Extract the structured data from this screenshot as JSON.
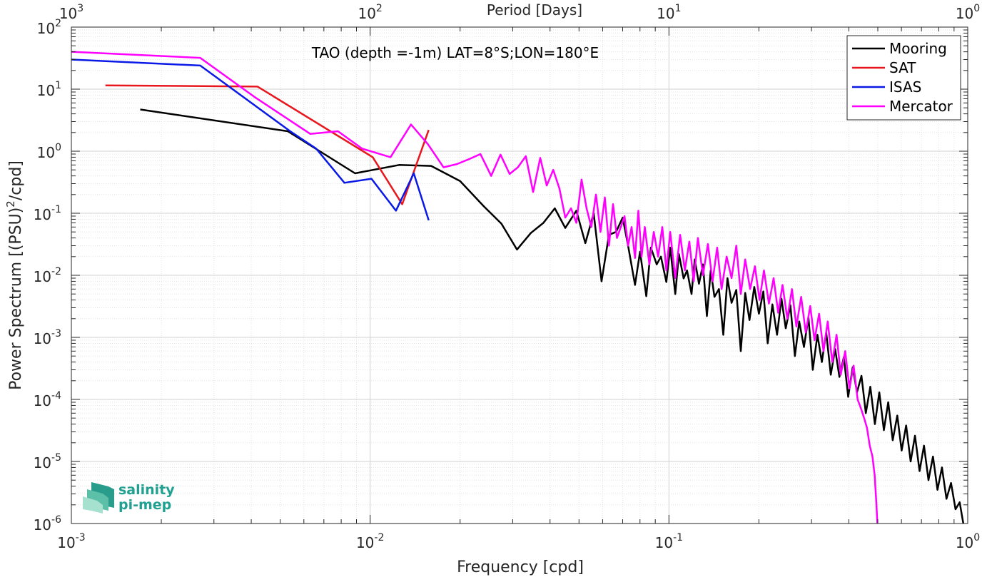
{
  "chart_data": {
    "type": "line",
    "title": "TAO (depth =-1m) LAT=8°S;LON=180°E",
    "xlabel": "Frequency [cpd]",
    "ylabel_main": "Power Spectrum [(PSU)",
    "ylabel_sup": "2",
    "ylabel_tail": "/cpd]",
    "top_xlabel": "Period [Days]",
    "xscale": "log",
    "yscale": "log",
    "xlim": [
      0.001,
      1
    ],
    "ylim": [
      1e-06,
      100
    ],
    "grid": true,
    "legend_position": "top-right",
    "x_ticks": [
      {
        "base": "10",
        "exp": "-3"
      },
      {
        "base": "10",
        "exp": "-2"
      },
      {
        "base": "10",
        "exp": "-1"
      },
      {
        "base": "10",
        "exp": "0"
      }
    ],
    "top_ticks": [
      {
        "base": "10",
        "exp": "3"
      },
      {
        "base": "10",
        "exp": "2"
      },
      {
        "base": "10",
        "exp": "1"
      },
      {
        "base": "10",
        "exp": "0"
      }
    ],
    "y_ticks": [
      {
        "base": "10",
        "exp": "2"
      },
      {
        "base": "10",
        "exp": "1"
      },
      {
        "base": "10",
        "exp": "0"
      },
      {
        "base": "10",
        "exp": "-1"
      },
      {
        "base": "10",
        "exp": "-2"
      },
      {
        "base": "10",
        "exp": "-3"
      },
      {
        "base": "10",
        "exp": "-4"
      },
      {
        "base": "10",
        "exp": "-5"
      },
      {
        "base": "10",
        "exp": "-6"
      }
    ],
    "series": [
      {
        "name": "Mooring",
        "color": "#000000",
        "x": [
          0.0017,
          0.0053,
          0.0089,
          0.0125,
          0.016,
          0.02,
          0.024,
          0.0275,
          0.031,
          0.0345,
          0.038,
          0.0415,
          0.045,
          0.049,
          0.0525,
          0.056,
          0.0595,
          0.063,
          0.0665,
          0.07,
          0.073,
          0.077,
          0.08,
          0.084,
          0.087,
          0.091,
          0.094,
          0.098,
          0.101,
          0.105,
          0.108,
          0.112,
          0.115,
          0.119,
          0.122,
          0.126,
          0.13,
          0.134,
          0.138,
          0.142,
          0.147,
          0.152,
          0.157,
          0.162,
          0.168,
          0.174,
          0.18,
          0.186,
          0.193,
          0.2,
          0.207,
          0.214,
          0.222,
          0.23,
          0.238,
          0.246,
          0.255,
          0.264,
          0.273,
          0.283,
          0.293,
          0.303,
          0.314,
          0.325,
          0.336,
          0.348,
          0.36,
          0.372,
          0.385,
          0.398,
          0.412,
          0.426,
          0.441,
          0.456,
          0.472,
          0.489,
          0.506,
          0.524,
          0.542,
          0.561,
          0.581,
          0.601,
          0.622,
          0.644,
          0.666,
          0.69,
          0.714,
          0.739,
          0.765,
          0.792,
          0.82,
          0.849,
          0.879,
          0.91,
          0.94,
          0.96,
          0.975,
          0.985,
          0.995
        ],
        "y": [
          4.7,
          2.1,
          0.44,
          0.6,
          0.58,
          0.33,
          0.13,
          0.068,
          0.026,
          0.048,
          0.07,
          0.12,
          0.058,
          0.11,
          0.033,
          0.1,
          0.008,
          0.045,
          0.05,
          0.085,
          0.03,
          0.007,
          0.024,
          0.0046,
          0.028,
          0.015,
          0.02,
          0.0078,
          0.028,
          0.005,
          0.022,
          0.0089,
          0.012,
          0.005,
          0.018,
          0.0073,
          0.015,
          0.0022,
          0.012,
          0.0045,
          0.006,
          0.0011,
          0.009,
          0.0036,
          0.0058,
          0.0006,
          0.0052,
          0.0019,
          0.0065,
          0.0024,
          0.0055,
          0.0008,
          0.0034,
          0.0011,
          0.0042,
          0.0014,
          0.0033,
          0.0005,
          0.0018,
          0.0007,
          0.0021,
          0.0003,
          0.0011,
          0.0004,
          0.0012,
          0.00025,
          0.00065,
          0.00023,
          0.00048,
          0.00011,
          0.00033,
          0.00013,
          0.00024,
          6e-05,
          0.00016,
          4e-05,
          0.00013,
          3.2e-05,
          9e-05,
          2.2e-05,
          5.5e-05,
          1.5e-05,
          3.8e-05,
          1e-05,
          2.6e-05,
          7e-06,
          1.8e-05,
          5e-06,
          1.2e-05,
          3.5e-06,
          8e-06,
          2.5e-06,
          4.5e-06,
          1.7e-06,
          2.2e-06,
          1.2e-06,
          8e-07,
          6e-07,
          4e-07
        ]
      },
      {
        "name": "SAT",
        "color": "#e8171d",
        "x": [
          0.0013,
          0.0042,
          0.0102,
          0.0128,
          0.0157
        ],
        "y": [
          11.5,
          11,
          0.8,
          0.14,
          2.2
        ]
      },
      {
        "name": "ISAS",
        "color": "#0a19e6",
        "x": [
          0.001,
          0.0027,
          0.0054,
          0.0066,
          0.0082,
          0.0101,
          0.0122,
          0.014,
          0.0157
        ],
        "y": [
          30,
          24,
          2.1,
          1.1,
          0.31,
          0.36,
          0.11,
          0.44,
          0.077
        ]
      },
      {
        "name": "Mercator",
        "color": "#ff00ff",
        "x": [
          0.001,
          0.0027,
          0.0041,
          0.0063,
          0.0078,
          0.0094,
          0.0117,
          0.0137,
          0.0156,
          0.0176,
          0.0195,
          0.0215,
          0.0234,
          0.0254,
          0.0273,
          0.0293,
          0.0312,
          0.0332,
          0.0351,
          0.0371,
          0.039,
          0.041,
          0.043,
          0.045,
          0.047,
          0.049,
          0.051,
          0.053,
          0.055,
          0.057,
          0.059,
          0.061,
          0.063,
          0.065,
          0.067,
          0.069,
          0.071,
          0.073,
          0.075,
          0.077,
          0.079,
          0.081,
          0.083,
          0.086,
          0.089,
          0.092,
          0.095,
          0.098,
          0.101,
          0.105,
          0.109,
          0.113,
          0.117,
          0.121,
          0.125,
          0.13,
          0.135,
          0.14,
          0.145,
          0.15,
          0.156,
          0.162,
          0.168,
          0.174,
          0.18,
          0.187,
          0.194,
          0.201,
          0.208,
          0.216,
          0.224,
          0.232,
          0.24,
          0.249,
          0.258,
          0.267,
          0.277,
          0.287,
          0.297,
          0.307,
          0.318,
          0.329,
          0.34,
          0.352,
          0.364,
          0.376,
          0.389,
          0.402,
          0.415,
          0.428,
          0.44,
          0.45,
          0.46,
          0.47,
          0.48,
          0.488,
          0.495,
          0.5
        ],
        "y": [
          40,
          32,
          7.5,
          1.9,
          2.1,
          1.1,
          0.8,
          2.7,
          1.3,
          0.55,
          0.62,
          0.75,
          0.9,
          0.4,
          0.88,
          0.43,
          0.55,
          0.83,
          0.22,
          0.78,
          0.28,
          0.5,
          0.25,
          0.085,
          0.12,
          0.07,
          0.35,
          0.12,
          0.06,
          0.2,
          0.05,
          0.18,
          0.03,
          0.14,
          0.04,
          0.06,
          0.09,
          0.03,
          0.06,
          0.019,
          0.11,
          0.02,
          0.06,
          0.015,
          0.05,
          0.02,
          0.06,
          0.012,
          0.05,
          0.009,
          0.045,
          0.012,
          0.035,
          0.008,
          0.04,
          0.01,
          0.032,
          0.008,
          0.028,
          0.006,
          0.02,
          0.009,
          0.03,
          0.005,
          0.018,
          0.006,
          0.014,
          0.004,
          0.012,
          0.0035,
          0.009,
          0.0025,
          0.007,
          0.002,
          0.006,
          0.0015,
          0.0045,
          0.0012,
          0.0032,
          0.0009,
          0.0024,
          0.0006,
          0.0018,
          0.0004,
          0.0011,
          0.00025,
          0.0006,
          0.00015,
          0.00035,
          0.0001,
          7e-05,
          5e-05,
          3.5e-05,
          1.8e-05,
          1.2e-05,
          6e-06,
          2e-06,
          7e-07
        ]
      }
    ]
  },
  "logo": {
    "line1": "salinity",
    "line2": "pi-mep"
  }
}
